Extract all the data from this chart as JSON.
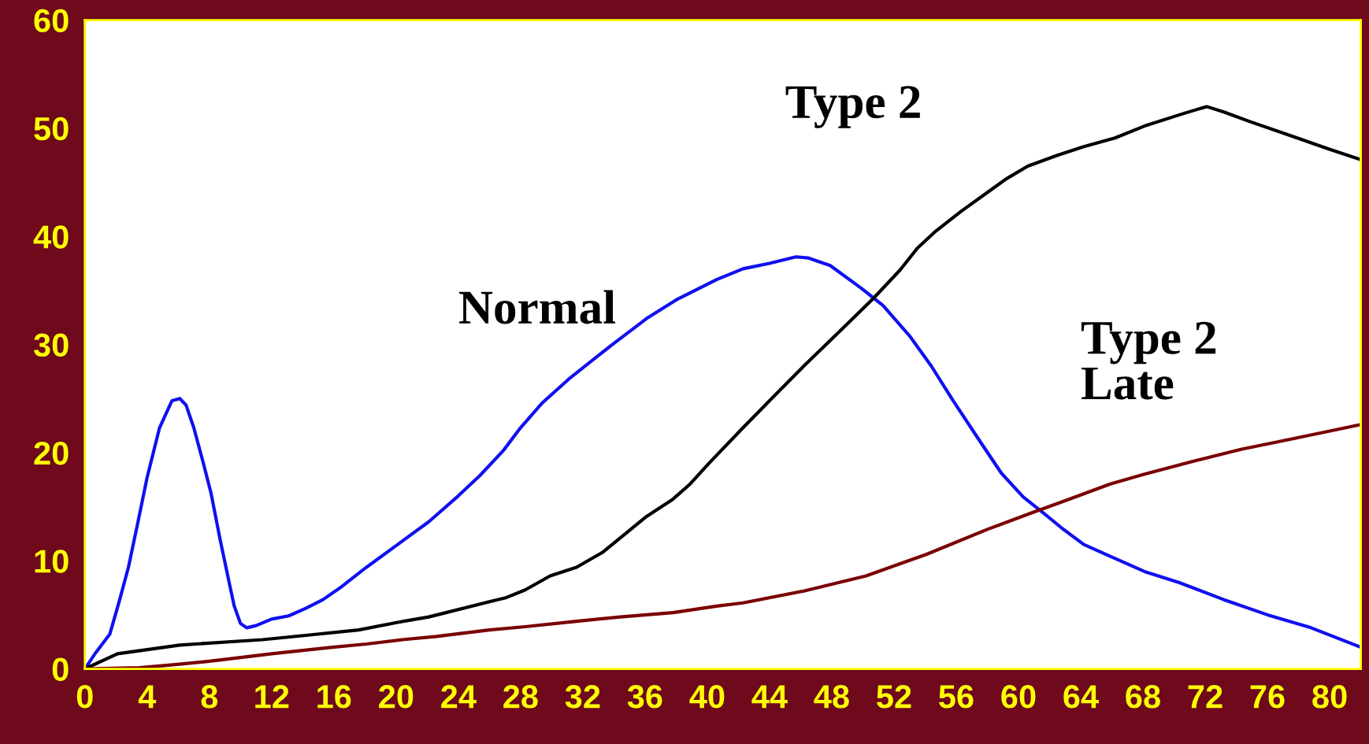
{
  "chart_data": {
    "type": "line",
    "xlim": [
      0,
      82
    ],
    "ylim": [
      0,
      60
    ],
    "xticks": [
      0,
      4,
      8,
      12,
      16,
      20,
      24,
      28,
      32,
      36,
      40,
      44,
      48,
      52,
      56,
      60,
      64,
      68,
      72,
      76,
      80
    ],
    "yticks": [
      0,
      10,
      20,
      30,
      40,
      50,
      60
    ],
    "grid": false,
    "legend": false,
    "marker": "none",
    "line_style": "solid",
    "series": [
      {
        "name": "Normal",
        "color": "#1010f0",
        "x": [
          0,
          0.7,
          1.6,
          2.2,
          2.8,
          3.4,
          4,
          4.8,
          5.6,
          6.1,
          6.5,
          7.0,
          7.6,
          8.1,
          8.7,
          9.3,
          9.6,
          10,
          10.4,
          11,
          12,
          13.1,
          14.2,
          15.3,
          16.5,
          18.1,
          20.1,
          22.1,
          24,
          25.4,
          26.9,
          28,
          29.4,
          31.1,
          33.9,
          36.1,
          38.1,
          40.6,
          42.3,
          44,
          45.7,
          46.5,
          47.9,
          49.9,
          51.3,
          53,
          54.4,
          55.8,
          57.5,
          58.9,
          60.3,
          61.7,
          62.8,
          64.2,
          65.9,
          68.1,
          70.3,
          73.2,
          76,
          78.8,
          82
        ],
        "values": [
          0,
          1.5,
          3.2,
          6.2,
          9.4,
          13.5,
          17.7,
          22.3,
          24.8,
          25,
          24.4,
          22.3,
          19.1,
          16.3,
          11.9,
          7.8,
          5.8,
          4.2,
          3.8,
          4,
          4.6,
          4.9,
          5.6,
          6.4,
          7.6,
          9.4,
          11.5,
          13.6,
          16,
          17.9,
          20.2,
          22.3,
          24.6,
          26.8,
          30,
          32.4,
          34.2,
          36,
          37,
          37.5,
          38.1,
          38,
          37.3,
          35.2,
          33.6,
          30.8,
          28,
          24.8,
          21.1,
          18.1,
          15.9,
          14.3,
          13,
          11.5,
          10.4,
          9,
          8,
          6.4,
          5,
          3.8,
          2
        ]
      },
      {
        "name": "Type 2",
        "color": "#000000",
        "x": [
          0,
          2.1,
          6.1,
          11.4,
          14.2,
          17.6,
          20.1,
          22.1,
          25.4,
          27.1,
          28.3,
          29.9,
          31.6,
          33.3,
          34.4,
          36.1,
          37.8,
          38.9,
          40.1,
          42.3,
          44,
          46.2,
          48.5,
          50.7,
          52.4,
          53.5,
          54.7,
          56.3,
          59.2,
          60.6,
          62.5,
          64.2,
          66.2,
          68.1,
          70.7,
          72.1,
          73.2,
          74.9,
          77.7,
          79.9,
          82
        ],
        "values": [
          0,
          1.4,
          2.2,
          2.7,
          3.1,
          3.6,
          4.3,
          4.8,
          6,
          6.6,
          7.3,
          8.6,
          9.4,
          10.8,
          12.1,
          14.1,
          15.7,
          17.1,
          19,
          22.3,
          24.8,
          28,
          31.2,
          34.3,
          36.9,
          38.9,
          40.5,
          42.3,
          45.3,
          46.5,
          47.5,
          48.3,
          49.1,
          50.2,
          51.4,
          52,
          51.5,
          50.6,
          49.2,
          48.1,
          47.1
        ]
      },
      {
        "name": "Type 2\nLate",
        "color": "#7a0000",
        "x": [
          0,
          3.5,
          5.8,
          8,
          9.7,
          12,
          15.9,
          18.1,
          20.4,
          22.6,
          26,
          28.3,
          31.6,
          34.4,
          37.8,
          40.6,
          42.3,
          46.2,
          50.2,
          54.1,
          58,
          60.8,
          63.1,
          65.9,
          68.1,
          71.5,
          74.3,
          77.7,
          82
        ],
        "values": [
          0,
          0.1,
          0.4,
          0.7,
          1.0,
          1.4,
          2.0,
          2.3,
          2.7,
          3.0,
          3.6,
          3.9,
          4.4,
          4.8,
          5.2,
          5.8,
          6.1,
          7.2,
          8.6,
          10.6,
          12.9,
          14.4,
          15.6,
          17.1,
          18,
          19.3,
          20.3,
          21.3,
          22.6
        ]
      }
    ]
  }
}
